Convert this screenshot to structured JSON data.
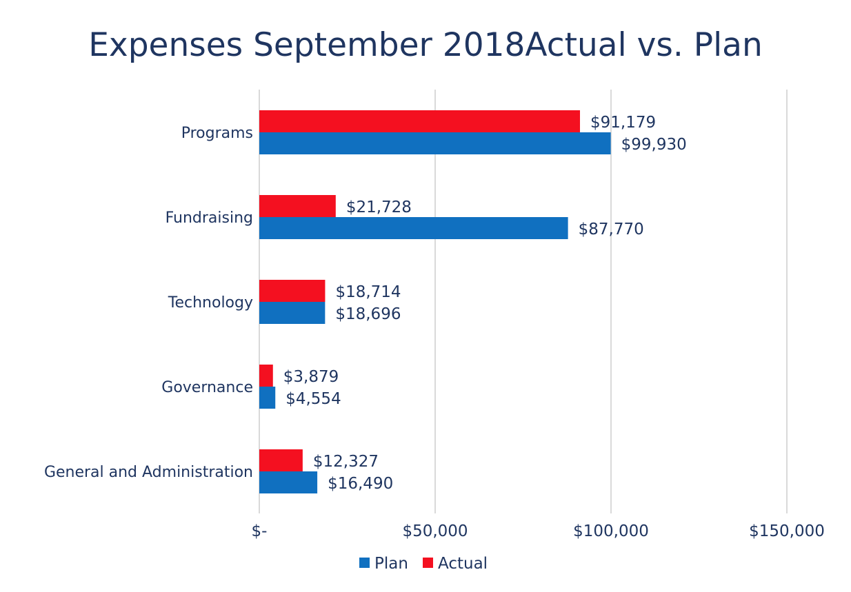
{
  "chart_data": {
    "type": "bar",
    "orientation": "horizontal",
    "title": "Expenses September 2018Actual vs. Plan",
    "categories": [
      "Programs",
      "Fundraising",
      "Technology",
      "Governance",
      "General and Administration"
    ],
    "series": [
      {
        "name": "Plan",
        "color": "#1070c0",
        "values": [
          99930,
          87770,
          18696,
          4554,
          16490
        ],
        "labels": [
          "$99,930",
          "$87,770",
          "$18,696",
          "$4,554",
          "$16,490"
        ]
      },
      {
        "name": "Actual",
        "color": "#f41020",
        "values": [
          91179,
          21728,
          18714,
          3879,
          12327
        ],
        "labels": [
          "$91,179",
          "$21,728",
          "$18,714",
          "$3,879",
          "$12,327"
        ]
      }
    ],
    "xlim": [
      0,
      150000
    ],
    "xticks": [
      0,
      50000,
      100000,
      150000
    ],
    "xtick_labels": [
      "$-",
      "$50,000",
      "$100,000",
      "$150,000"
    ],
    "grid": true,
    "legend_position": "bottom"
  }
}
